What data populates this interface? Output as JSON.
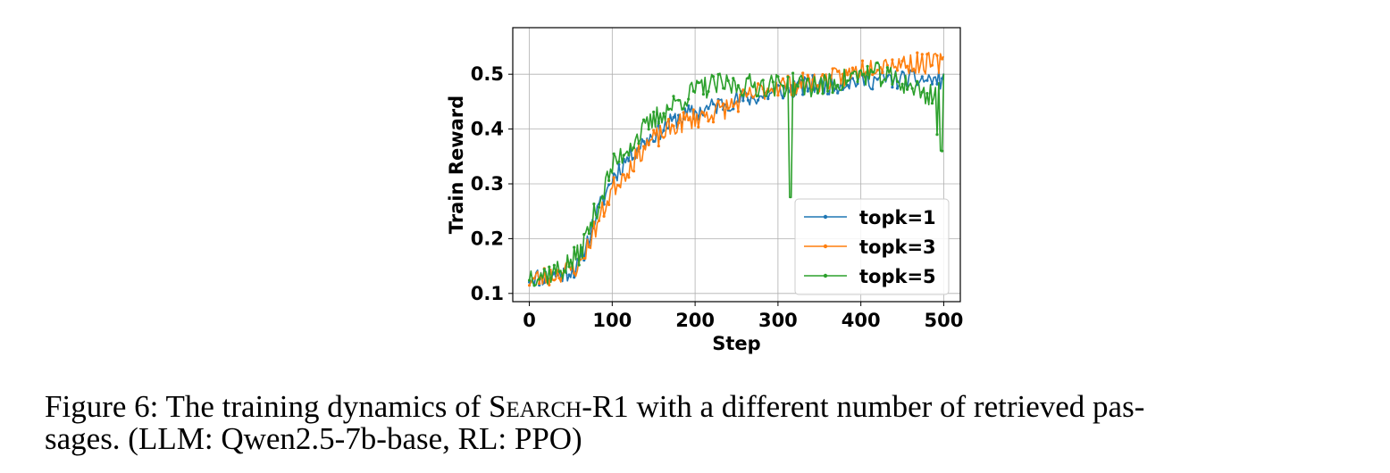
{
  "chart_data": {
    "type": "line",
    "xlabel": "Step",
    "ylabel": "Train Reward",
    "xlim": [
      -20,
      520
    ],
    "ylim": [
      0.085,
      0.585
    ],
    "xticks": [
      0,
      100,
      200,
      300,
      400,
      500
    ],
    "yticks": [
      0.1,
      0.2,
      0.3,
      0.4,
      0.5
    ],
    "xtick_labels": [
      "0",
      "100",
      "200",
      "300",
      "400",
      "500"
    ],
    "ytick_labels": [
      "0.1",
      "0.2",
      "0.3",
      "0.4",
      "0.5"
    ],
    "grid": true,
    "legend_position": "lower-right",
    "series": [
      {
        "name": "topk=1",
        "color": "#1f77b4",
        "anchors": [
          [
            0,
            0.13
          ],
          [
            20,
            0.13
          ],
          [
            40,
            0.135
          ],
          [
            60,
            0.15
          ],
          [
            80,
            0.24
          ],
          [
            100,
            0.31
          ],
          [
            120,
            0.35
          ],
          [
            140,
            0.38
          ],
          [
            160,
            0.4
          ],
          [
            180,
            0.42
          ],
          [
            200,
            0.43
          ],
          [
            220,
            0.44
          ],
          [
            240,
            0.45
          ],
          [
            260,
            0.455
          ],
          [
            280,
            0.46
          ],
          [
            300,
            0.47
          ],
          [
            320,
            0.475
          ],
          [
            340,
            0.48
          ],
          [
            360,
            0.48
          ],
          [
            380,
            0.485
          ],
          [
            400,
            0.49
          ],
          [
            420,
            0.49
          ],
          [
            440,
            0.49
          ],
          [
            460,
            0.49
          ],
          [
            480,
            0.49
          ],
          [
            500,
            0.49
          ]
        ],
        "noise": 0.018,
        "seed": 11
      },
      {
        "name": "topk=3",
        "color": "#ff7f0e",
        "anchors": [
          [
            0,
            0.125
          ],
          [
            20,
            0.13
          ],
          [
            40,
            0.14
          ],
          [
            60,
            0.15
          ],
          [
            80,
            0.22
          ],
          [
            100,
            0.29
          ],
          [
            120,
            0.33
          ],
          [
            140,
            0.37
          ],
          [
            160,
            0.39
          ],
          [
            180,
            0.41
          ],
          [
            200,
            0.42
          ],
          [
            220,
            0.43
          ],
          [
            240,
            0.44
          ],
          [
            260,
            0.455
          ],
          [
            280,
            0.47
          ],
          [
            300,
            0.48
          ],
          [
            320,
            0.48
          ],
          [
            340,
            0.485
          ],
          [
            360,
            0.49
          ],
          [
            380,
            0.495
          ],
          [
            400,
            0.51
          ],
          [
            420,
            0.52
          ],
          [
            440,
            0.52
          ],
          [
            460,
            0.52
          ],
          [
            480,
            0.52
          ],
          [
            500,
            0.52
          ]
        ],
        "noise": 0.02,
        "seed": 23
      },
      {
        "name": "topk=5",
        "color": "#2ca02c",
        "anchors": [
          [
            0,
            0.135
          ],
          [
            20,
            0.135
          ],
          [
            40,
            0.145
          ],
          [
            60,
            0.17
          ],
          [
            80,
            0.25
          ],
          [
            100,
            0.33
          ],
          [
            120,
            0.37
          ],
          [
            140,
            0.4
          ],
          [
            160,
            0.43
          ],
          [
            180,
            0.45
          ],
          [
            200,
            0.47
          ],
          [
            220,
            0.48
          ],
          [
            240,
            0.48
          ],
          [
            260,
            0.48
          ],
          [
            280,
            0.48
          ],
          [
            300,
            0.48
          ],
          [
            320,
            0.48
          ],
          [
            340,
            0.48
          ],
          [
            360,
            0.48
          ],
          [
            380,
            0.49
          ],
          [
            400,
            0.5
          ],
          [
            420,
            0.5
          ],
          [
            440,
            0.49
          ],
          [
            460,
            0.48
          ],
          [
            480,
            0.46
          ],
          [
            500,
            0.48
          ]
        ],
        "noise": 0.022,
        "seed": 37,
        "spikes": [
          [
            315,
            0.275
          ],
          [
            497,
            0.36
          ],
          [
            492,
            0.39
          ]
        ]
      }
    ]
  },
  "caption": {
    "prefix": "Figure 6: The training dynamics of ",
    "system_name": "Search",
    "system_suffix": "-R1 with a different number of retrieved pas-",
    "line2": "sages. (LLM: Qwen2.5-7b-base, RL: PPO)"
  }
}
